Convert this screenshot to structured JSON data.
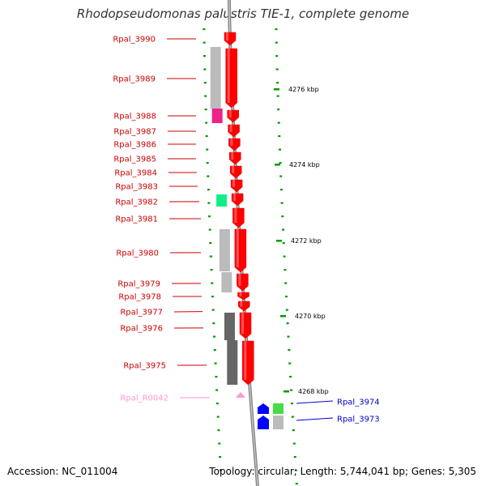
{
  "title": "Rhodopseudomonas palustris TIE-1, complete genome",
  "accession_text": "Accession: NC_011004",
  "topology_text": "Topology: circular; Length: 5,744,041 bp; Genes: 5,305",
  "colors": {
    "forward_gene": "#ff0000",
    "reverse_gene": "#0000ff",
    "rna_gene": "#ff99cc",
    "label_forward": "#cc0000",
    "label_reverse": "#0000cc",
    "label_rna": "#ff99cc",
    "tick": "#009900",
    "backbone": "#888888"
  },
  "scale_ticks": [
    {
      "label": "4276 kbp"
    },
    {
      "label": "4274 kbp"
    },
    {
      "label": "4272 kbp"
    },
    {
      "label": "4270 kbp"
    },
    {
      "label": "4268 kbp"
    }
  ],
  "genes": [
    {
      "id": "Rpal_3990",
      "strand": "forward",
      "type": "CDS"
    },
    {
      "id": "Rpal_3989",
      "strand": "forward",
      "type": "CDS"
    },
    {
      "id": "Rpal_3988",
      "strand": "forward",
      "type": "CDS"
    },
    {
      "id": "Rpal_3987",
      "strand": "forward",
      "type": "CDS"
    },
    {
      "id": "Rpal_3986",
      "strand": "forward",
      "type": "CDS"
    },
    {
      "id": "Rpal_3985",
      "strand": "forward",
      "type": "CDS"
    },
    {
      "id": "Rpal_3984",
      "strand": "forward",
      "type": "CDS"
    },
    {
      "id": "Rpal_3983",
      "strand": "forward",
      "type": "CDS"
    },
    {
      "id": "Rpal_3982",
      "strand": "forward",
      "type": "CDS"
    },
    {
      "id": "Rpal_3981",
      "strand": "forward",
      "type": "CDS"
    },
    {
      "id": "Rpal_3980",
      "strand": "forward",
      "type": "CDS"
    },
    {
      "id": "Rpal_3979",
      "strand": "forward",
      "type": "CDS"
    },
    {
      "id": "Rpal_3978",
      "strand": "forward",
      "type": "CDS"
    },
    {
      "id": "Rpal_3977",
      "strand": "forward",
      "type": "CDS"
    },
    {
      "id": "Rpal_3976",
      "strand": "forward",
      "type": "CDS"
    },
    {
      "id": "Rpal_3975",
      "strand": "forward",
      "type": "CDS"
    },
    {
      "id": "Rpal_R0042",
      "strand": "forward",
      "type": "RNA"
    },
    {
      "id": "Rpal_3974",
      "strand": "reverse",
      "type": "CDS"
    },
    {
      "id": "Rpal_3973",
      "strand": "reverse",
      "type": "CDS"
    }
  ]
}
